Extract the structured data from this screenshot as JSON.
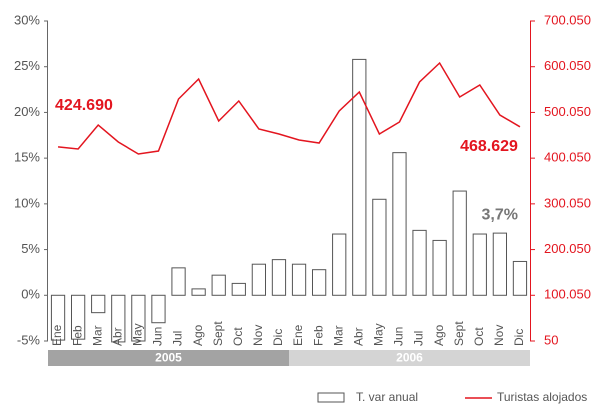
{
  "chart_data": {
    "type": "bar-line",
    "categories": [
      "Ene",
      "Feb",
      "Mar",
      "Abr",
      "May",
      "Jun",
      "Jul",
      "Ago",
      "Sept",
      "Oct",
      "Nov",
      "Dic",
      "Ene",
      "Feb",
      "Mar",
      "Abr",
      "May",
      "Jun",
      "Jul",
      "Ago",
      "Sept",
      "Oct",
      "Nov",
      "Dic"
    ],
    "group_labels": [
      "2005",
      "2006"
    ],
    "group_colors": [
      "#a3a3a3",
      "#d4d4d4"
    ],
    "series": [
      {
        "name": "T. var anual",
        "type": "bar",
        "color": "#ffffff",
        "stroke": "#555555",
        "values": [
          -4.9,
          -4.8,
          -1.9,
          -5.1,
          -5.0,
          -3.0,
          3.0,
          0.7,
          2.2,
          1.3,
          3.4,
          3.9,
          3.4,
          2.8,
          6.7,
          25.8,
          10.5,
          15.6,
          7.1,
          6.0,
          11.4,
          6.7,
          6.8,
          3.7
        ],
        "value_labels": [
          null,
          null,
          null,
          null,
          null,
          null,
          null,
          null,
          null,
          null,
          null,
          null,
          null,
          null,
          null,
          null,
          null,
          null,
          null,
          null,
          null,
          null,
          null,
          "3,7%"
        ],
        "label_color": "#777777"
      },
      {
        "name": "Turistas alojados",
        "type": "line",
        "axis": "y2",
        "color": "#e3151f",
        "values": [
          424690,
          420050,
          472550,
          435350,
          409100,
          415650,
          529425,
          573175,
          481300,
          525050,
          463800,
          452850,
          439725,
          433150,
          503150,
          544700,
          452850,
          479100,
          566600,
          608150,
          533800,
          560050,
          494400,
          468629
        ],
        "value_labels": [
          "424.690",
          null,
          null,
          null,
          null,
          null,
          null,
          null,
          null,
          null,
          null,
          null,
          null,
          null,
          null,
          null,
          null,
          null,
          null,
          null,
          null,
          null,
          null,
          "468.629"
        ],
        "label_color": "#e3151f"
      }
    ],
    "ylim": [
      -5,
      30
    ],
    "yticks": [
      {
        "value": -5,
        "label": "-5%"
      },
      {
        "value": 0,
        "label": "0%"
      },
      {
        "value": 5,
        "label": "5%"
      },
      {
        "value": 10,
        "label": "10%"
      },
      {
        "value": 15,
        "label": "15%"
      },
      {
        "value": 20,
        "label": "20%"
      },
      {
        "value": 25,
        "label": "25%"
      },
      {
        "value": 30,
        "label": "30%"
      }
    ],
    "y2lim": [
      50,
      700050
    ],
    "y2ticks": [
      50,
      {
        "value": 100050,
        "label": "100.050"
      },
      {
        "value": 200050,
        "label": "200.050"
      },
      {
        "value": 300050,
        "label": "300.050"
      },
      {
        "value": 400050,
        "label": "400.050"
      },
      {
        "value": 500050,
        "label": "500.050"
      },
      {
        "value": 600050,
        "label": "600.050"
      },
      {
        "value": 700050,
        "label": "700.050"
      }
    ],
    "y2_color": "#e3151f",
    "legend": "bottom-right"
  }
}
